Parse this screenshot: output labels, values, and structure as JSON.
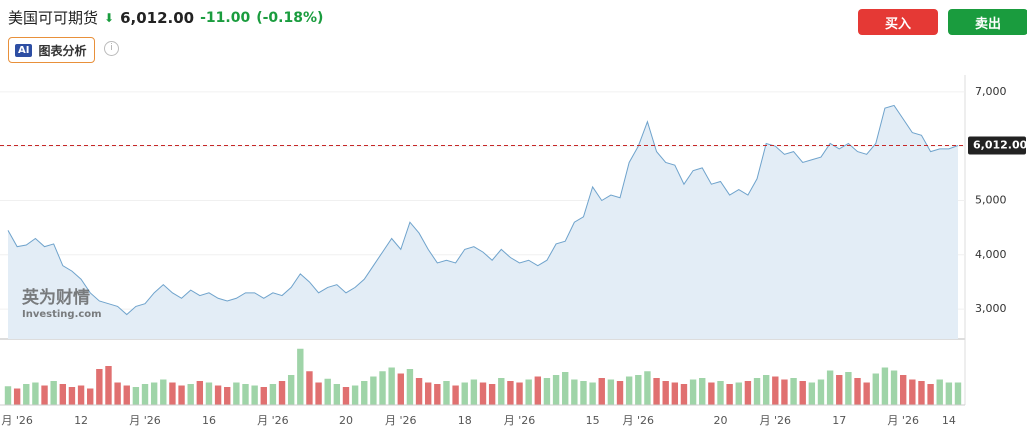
{
  "header": {
    "title": "美国可可期货",
    "change": "-11.00",
    "change_pct": "(-0.18%)",
    "buy": "买入",
    "sell": "卖出",
    "ai_badge": "AI",
    "ai_label": "图表分析",
    "watermark": [
      "英为财情",
      "Investing.com"
    ]
  },
  "chart_data": {
    "type": "line",
    "categories": [
      null,
      "月 '26",
      null,
      null,
      null,
      null,
      null,
      null,
      "12",
      null,
      null,
      null,
      null,
      null,
      null,
      "月 '26",
      null,
      null,
      null,
      null,
      null,
      null,
      "16",
      null,
      null,
      null,
      null,
      null,
      null,
      "月 '26",
      null,
      null,
      null,
      null,
      null,
      null,
      null,
      "20",
      null,
      null,
      null,
      null,
      null,
      "月 '26",
      null,
      null,
      null,
      null,
      null,
      null,
      "18",
      null,
      null,
      null,
      null,
      null,
      "月 '26",
      null,
      null,
      null,
      null,
      null,
      null,
      null,
      "15",
      null,
      null,
      null,
      null,
      "月 '26",
      null,
      null,
      null,
      null,
      null,
      null,
      null,
      null,
      "20",
      null,
      null,
      null,
      null,
      null,
      "月 '26",
      null,
      null,
      null,
      null,
      null,
      null,
      "17",
      null,
      null,
      null,
      null,
      null,
      null,
      "月 '26",
      null,
      null,
      null,
      null,
      "14",
      null
    ],
    "series": [
      {
        "name": "price",
        "color": "#6fa3cc",
        "fill": "#e3edf6",
        "values": [
          4450,
          4150,
          4180,
          4300,
          4150,
          4200,
          3800,
          3700,
          3550,
          3300,
          3150,
          3100,
          3050,
          2900,
          3050,
          3100,
          3300,
          3450,
          3300,
          3200,
          3350,
          3250,
          3300,
          3200,
          3150,
          3200,
          3300,
          3300,
          3200,
          3300,
          3250,
          3400,
          3650,
          3500,
          3300,
          3400,
          3450,
          3300,
          3400,
          3550,
          3800,
          4050,
          4300,
          4100,
          4600,
          4400,
          4100,
          3850,
          3900,
          3850,
          4100,
          4150,
          4050,
          3900,
          4100,
          3950,
          3850,
          3900,
          3800,
          3900,
          4200,
          4250,
          4600,
          4700,
          5250,
          5000,
          5100,
          5050,
          5700,
          6000,
          6450,
          5900,
          5700,
          5650,
          5300,
          5550,
          5600,
          5300,
          5350,
          5100,
          5200,
          5100,
          5400,
          6050,
          6000,
          5850,
          5900,
          5700,
          5750,
          5800,
          6050,
          5950,
          6050,
          5900,
          5850,
          6050,
          6700,
          6750,
          6500,
          6250,
          6200,
          5900,
          5950,
          5950,
          6012
        ]
      },
      {
        "name": "volume",
        "axis": "volume",
        "up_color": "#9fd4a8",
        "down_color": "#e07070",
        "values": [
          25,
          22,
          28,
          30,
          26,
          32,
          28,
          24,
          26,
          22,
          48,
          52,
          30,
          26,
          24,
          28,
          30,
          34,
          30,
          26,
          28,
          32,
          30,
          26,
          24,
          30,
          28,
          26,
          24,
          28,
          32,
          40,
          75,
          45,
          30,
          35,
          28,
          24,
          26,
          32,
          38,
          45,
          50,
          42,
          48,
          36,
          30,
          28,
          32,
          26,
          30,
          34,
          30,
          28,
          36,
          32,
          30,
          34,
          38,
          36,
          40,
          44,
          34,
          32,
          30,
          36,
          34,
          32,
          38,
          40,
          45,
          36,
          32,
          30,
          28,
          34,
          36,
          30,
          32,
          28,
          30,
          32,
          36,
          40,
          38,
          34,
          36,
          32,
          30,
          34,
          46,
          40,
          44,
          36,
          30,
          42,
          50,
          46,
          40,
          34,
          32,
          28,
          34,
          30,
          30
        ]
      }
    ],
    "ylim": [
      2450,
      7200
    ],
    "yticks": [
      {
        "value": 3000,
        "label": "3,000"
      },
      {
        "value": 4000,
        "label": "4,000"
      },
      {
        "value": 5000,
        "label": "5,000"
      },
      {
        "value": 6000,
        "label": "6,000"
      },
      {
        "value": 7000,
        "label": "7,000"
      }
    ],
    "vlim": [
      0,
      100
    ],
    "grid": true,
    "last_price": {
      "value": 6012,
      "label": "6,012.00",
      "color": "#c62828"
    }
  }
}
